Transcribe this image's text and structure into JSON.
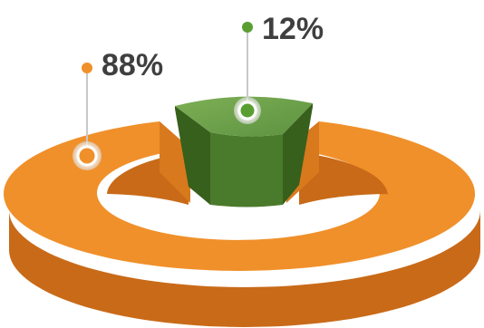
{
  "chart_data": {
    "type": "pie",
    "style": "3d-donut",
    "slices": [
      {
        "label": "88%",
        "value": 88,
        "color": "#F0902A",
        "side_color": "#C96A18"
      },
      {
        "label": "12%",
        "value": 12,
        "color": "#6A9E45",
        "side_color": "#3F6B22"
      }
    ],
    "title": "",
    "legend": "none"
  },
  "labels": {
    "big_slice": "88%",
    "small_slice": "12%"
  },
  "colors": {
    "label_text": "#3F3F3F",
    "leader_line": "#C8C8C8",
    "orange_dot": "#F0902A",
    "green_dot": "#5A9E32"
  }
}
